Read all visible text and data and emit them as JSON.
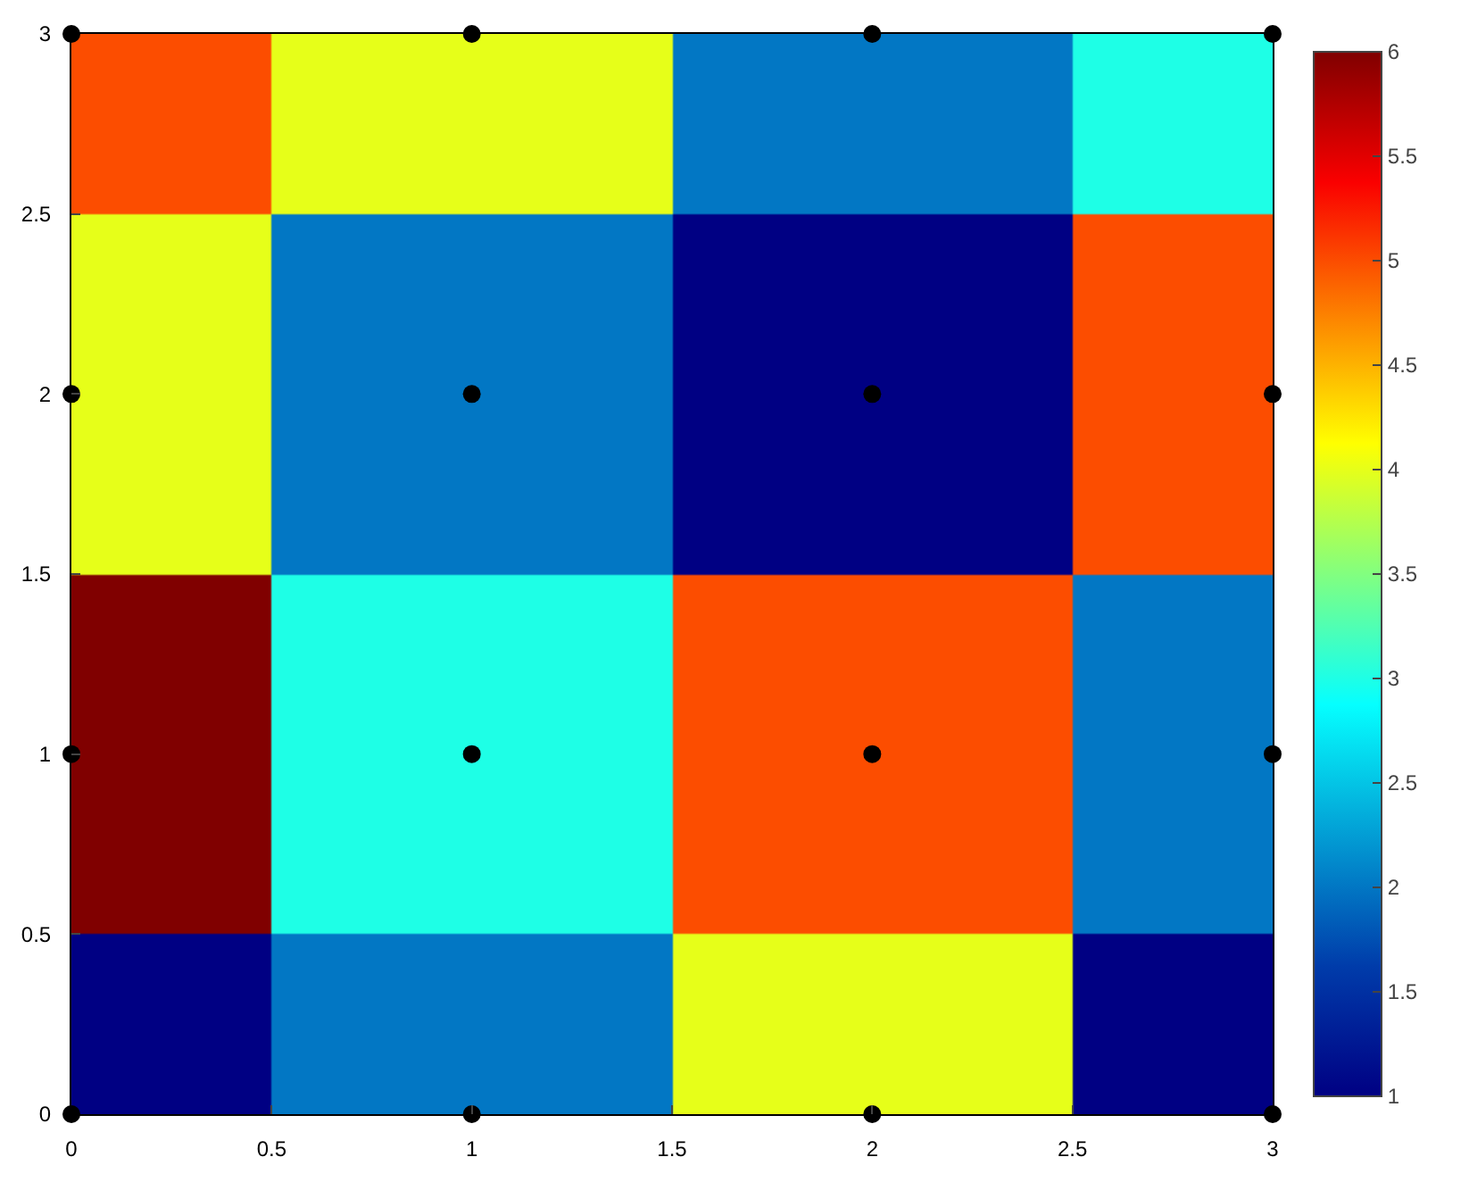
{
  "chart_data": {
    "type": "heatmap",
    "x": [
      0,
      1,
      2,
      3
    ],
    "cells": [
      [
        5,
        4,
        2,
        3
      ],
      [
        4,
        2,
        1,
        5
      ],
      [
        6,
        3,
        5,
        2
      ],
      [
        1,
        2,
        4,
        1
      ]
    ],
    "clim": [
      1,
      6
    ],
    "cticks": [
      1,
      1.5,
      2,
      2.5,
      3,
      3.5,
      4,
      4.5,
      5,
      5.5,
      6
    ],
    "xlim": [
      0,
      3
    ],
    "ylim": [
      0,
      3
    ],
    "xticks": [
      0,
      0.5,
      1,
      1.5,
      2,
      2.5,
      3
    ],
    "yticks": [
      0,
      0.5,
      1,
      1.5,
      2,
      2.5,
      3
    ],
    "series": [
      {
        "type": "scatter",
        "color": "#000000",
        "x": [
          0,
          1,
          2,
          3,
          0,
          1,
          2,
          3,
          0,
          1,
          2,
          3,
          0,
          1,
          2,
          3
        ],
        "values": [
          0,
          0,
          0,
          0,
          1,
          1,
          1,
          1,
          2,
          2,
          2,
          2,
          3,
          3,
          3,
          3
        ]
      }
    ],
    "marker": "circle"
  }
}
